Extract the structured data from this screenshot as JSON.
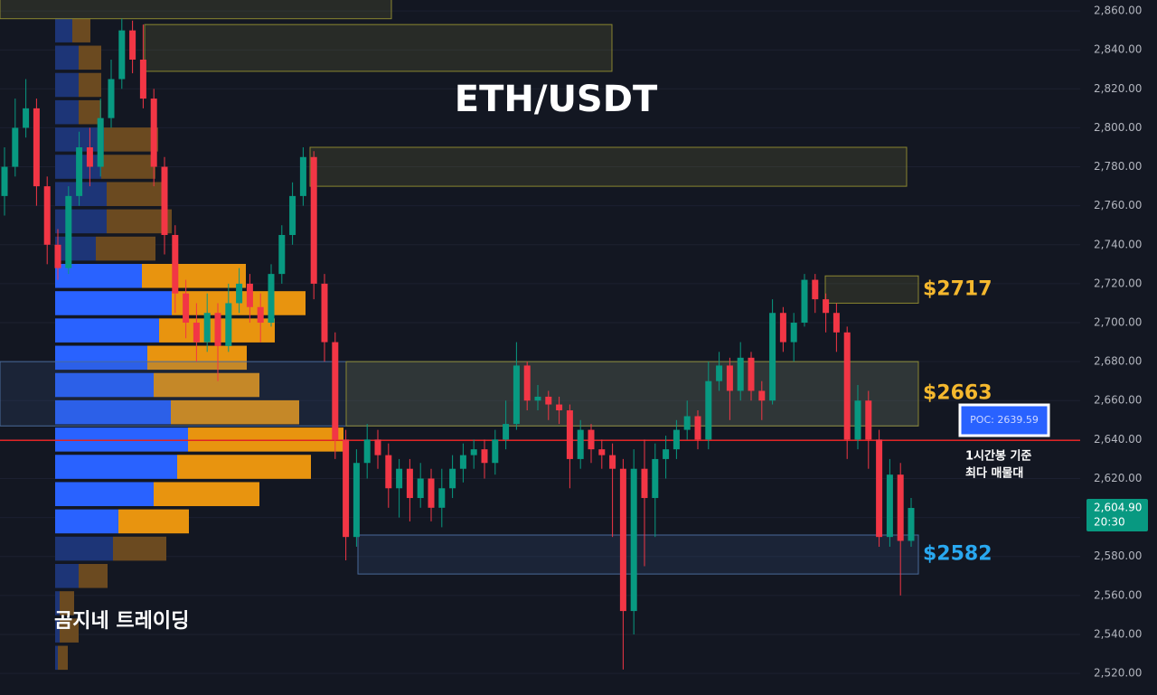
{
  "chart_data": {
    "type": "candlestick",
    "title": "ETH/USDT",
    "watermark": "곰지네 트레이딩",
    "up_color": "#089981",
    "down_color": "#f23645",
    "ylim": [
      2508.9,
      2865.6
    ],
    "yticks": [
      {
        "value": 2520,
        "label": "2,520.00"
      },
      {
        "value": 2540,
        "label": "2,540.00"
      },
      {
        "value": 2560,
        "label": "2,560.00"
      },
      {
        "value": 2580,
        "label": "2,580.00"
      },
      {
        "value": 2600,
        "label": "2,600.00"
      },
      {
        "value": 2620,
        "label": "2,620.00"
      },
      {
        "value": 2640,
        "label": "2,640.00"
      },
      {
        "value": 2660,
        "label": "2,660.00"
      },
      {
        "value": 2680,
        "label": "2,680.00"
      },
      {
        "value": 2700,
        "label": "2,700.00"
      },
      {
        "value": 2720,
        "label": "2,720.00"
      },
      {
        "value": 2740,
        "label": "2,740.00"
      },
      {
        "value": 2760,
        "label": "2,760.00"
      },
      {
        "value": 2780,
        "label": "2,780.00"
      },
      {
        "value": 2800,
        "label": "2,800.00"
      },
      {
        "value": 2820,
        "label": "2,820.00"
      },
      {
        "value": 2840,
        "label": "2,840.00"
      },
      {
        "value": 2860,
        "label": "2,860.00"
      }
    ],
    "open": [
      2765,
      2780,
      2800,
      2810,
      2770,
      2740,
      2728,
      2765,
      2790,
      2780,
      2805,
      2825,
      2850,
      2835,
      2815,
      2780,
      2745,
      2715,
      2700,
      2690,
      2705,
      2688,
      2710,
      2720,
      2708,
      2700,
      2725,
      2745,
      2765,
      2785,
      2720,
      2690,
      2640,
      2590,
      2628,
      2640,
      2632,
      2615,
      2625,
      2610,
      2620,
      2605,
      2615,
      2625,
      2632,
      2635,
      2628,
      2640,
      2648,
      2678,
      2660,
      2662,
      2658,
      2655,
      2630,
      2645,
      2635,
      2632,
      2625,
      2552,
      2625,
      2610,
      2630,
      2635,
      2645,
      2652,
      2640,
      2670,
      2678,
      2665,
      2682,
      2665,
      2660,
      2705,
      2690,
      2700,
      2722,
      2712,
      2705,
      2695,
      2640,
      2660,
      2640,
      2590,
      2622,
      2588
    ],
    "high": [
      2790,
      2815,
      2825,
      2815,
      2775,
      2748,
      2770,
      2798,
      2800,
      2815,
      2835,
      2856,
      2855,
      2853,
      2820,
      2785,
      2750,
      2722,
      2710,
      2715,
      2710,
      2720,
      2728,
      2725,
      2715,
      2730,
      2750,
      2772,
      2790,
      2788,
      2725,
      2695,
      2645,
      2635,
      2648,
      2645,
      2638,
      2630,
      2630,
      2628,
      2625,
      2625,
      2632,
      2638,
      2640,
      2640,
      2645,
      2660,
      2690,
      2680,
      2668,
      2665,
      2662,
      2658,
      2650,
      2648,
      2640,
      2638,
      2630,
      2635,
      2640,
      2638,
      2642,
      2650,
      2660,
      2655,
      2680,
      2685,
      2682,
      2690,
      2685,
      2670,
      2712,
      2708,
      2705,
      2725,
      2725,
      2715,
      2710,
      2698,
      2668,
      2665,
      2645,
      2630,
      2628,
      2610
    ],
    "low": [
      2755,
      2775,
      2795,
      2760,
      2730,
      2722,
      2725,
      2760,
      2770,
      2775,
      2800,
      2820,
      2828,
      2810,
      2770,
      2735,
      2705,
      2692,
      2680,
      2685,
      2670,
      2685,
      2705,
      2700,
      2690,
      2698,
      2720,
      2740,
      2760,
      2712,
      2680,
      2630,
      2578,
      2585,
      2620,
      2625,
      2605,
      2600,
      2598,
      2605,
      2598,
      2595,
      2610,
      2618,
      2625,
      2620,
      2622,
      2635,
      2645,
      2655,
      2655,
      2650,
      2648,
      2615,
      2625,
      2628,
      2625,
      2590,
      2522,
      2540,
      2575,
      2590,
      2620,
      2630,
      2640,
      2635,
      2635,
      2665,
      2650,
      2660,
      2660,
      2650,
      2658,
      2685,
      2680,
      2698,
      2705,
      2695,
      2685,
      2630,
      2635,
      2625,
      2585,
      2585,
      2560,
      2585
    ],
    "close": [
      2780,
      2800,
      2810,
      2770,
      2740,
      2728,
      2765,
      2790,
      2780,
      2805,
      2825,
      2850,
      2835,
      2815,
      2780,
      2745,
      2715,
      2700,
      2690,
      2705,
      2688,
      2710,
      2720,
      2708,
      2700,
      2725,
      2745,
      2765,
      2785,
      2720,
      2690,
      2640,
      2590,
      2628,
      2640,
      2632,
      2615,
      2625,
      2610,
      2620,
      2605,
      2615,
      2625,
      2632,
      2635,
      2628,
      2640,
      2648,
      2678,
      2660,
      2662,
      2658,
      2655,
      2630,
      2645,
      2635,
      2632,
      2625,
      2552,
      2625,
      2610,
      2630,
      2635,
      2645,
      2652,
      2640,
      2670,
      2678,
      2665,
      2682,
      2665,
      2660,
      2705,
      2690,
      2700,
      2722,
      2712,
      2705,
      2695,
      2640,
      2660,
      2640,
      2590,
      2622,
      2588,
      2604.9
    ],
    "last_price_label": "2,604.90",
    "last_time_label": "20:30",
    "volume_profile": {
      "prices": [
        2850,
        2836,
        2822,
        2808,
        2794,
        2780,
        2766,
        2752,
        2738,
        2724,
        2710,
        2696,
        2682,
        2668,
        2654,
        2640,
        2626,
        2612,
        2598,
        2584,
        2570,
        2556,
        2542,
        2528
      ],
      "buy": [
        19,
        26,
        26,
        26,
        54,
        51,
        57,
        57,
        45,
        96,
        129,
        115,
        102,
        109,
        128,
        147,
        135,
        109,
        70,
        64,
        26,
        5,
        5,
        3
      ],
      "sell": [
        20,
        25,
        25,
        25,
        60,
        60,
        67,
        72,
        66,
        115,
        148,
        128,
        110,
        117,
        142,
        172,
        148,
        117,
        78,
        59,
        32,
        16,
        21,
        11
      ],
      "value_area": [
        2591,
        2731
      ],
      "buy_color": "#2962ff",
      "sell_color": "#e8940f",
      "buy_color_outside": "#1d3577",
      "sell_color_outside": "#6b4a20"
    },
    "poc": {
      "value": 2639.59,
      "label": "POC: 2639.59",
      "color": "#e02424"
    },
    "note": [
      "1시간봉 기준",
      "최다 매물대"
    ],
    "zones": [
      {
        "top": 2866,
        "bottom": 2856,
        "color": "yellow"
      },
      {
        "top": 2853,
        "bottom": 2829,
        "color": "yellow"
      },
      {
        "top": 2790,
        "bottom": 2770,
        "color": "yellow"
      },
      {
        "top": 2724,
        "bottom": 2710,
        "color": "yellow",
        "label": "$2717",
        "label_color": "#f5b82e"
      },
      {
        "top": 2680,
        "bottom": 2647,
        "color": "blue"
      },
      {
        "top": 2680,
        "bottom": 2647,
        "color": "yellow",
        "label": "$2663",
        "label_color": "#f5b82e"
      },
      {
        "top": 2591,
        "bottom": 2571,
        "color": "blue",
        "label": "$2582",
        "label_color": "#29a8f0"
      }
    ]
  }
}
